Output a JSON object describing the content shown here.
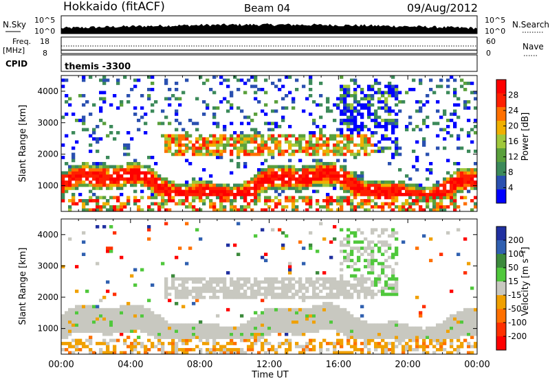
{
  "header": {
    "station": "Hokkaido (fitACF)",
    "beam": "Beam 04",
    "date": "09/Aug/2012"
  },
  "summary": {
    "nsky_label": "N.Sky",
    "nsky_ticks": [
      "10^5",
      "10^0"
    ],
    "nsearch_label": "N.Search",
    "nsearch_ticks": [
      "10^5",
      "10^0"
    ],
    "freq_label": "Freq.",
    "freq_unit": "[MHz]",
    "freq_ticks": [
      "18",
      "8"
    ],
    "nave_label": "Nave",
    "nave_ticks": [
      "60",
      "0"
    ],
    "cpid_label": "CPID",
    "cpid_value": "themis -3300"
  },
  "colors": {
    "power_scale": [
      "#0000ff",
      "#2a50b0",
      "#3c8a5a",
      "#5aa03c",
      "#a0c83c",
      "#f0b000",
      "#ff7000",
      "#ff2000",
      "#ff0000"
    ],
    "velocity_scale": [
      "#2030a0",
      "#3060b0",
      "#3c8a3c",
      "#50c83c",
      "#c8c8c0",
      "#f0a000",
      "#ff7000",
      "#ff3000",
      "#ff0000"
    ]
  },
  "chart_data": [
    {
      "type": "heatmap",
      "panel": "power",
      "ylabel": "Slant Range [km]",
      "y_ticks": [
        "1000",
        "2000",
        "3000",
        "4000"
      ],
      "ylim": [
        180,
        4500
      ],
      "colorbar_label": "Power [dB]",
      "colorbar_ticks": [
        "4",
        "8",
        "12",
        "16",
        "20",
        "24",
        "28"
      ],
      "x_ticks": [
        "00:00",
        "04:00",
        "08:00",
        "12:00",
        "16:00",
        "20:00",
        "00:00"
      ]
    },
    {
      "type": "heatmap",
      "panel": "velocity",
      "ylabel": "Slant Range [km]",
      "y_ticks": [
        "1000",
        "2000",
        "3000",
        "4000"
      ],
      "ylim": [
        180,
        4500
      ],
      "colorbar_label": "Velocity [m s⁻¹]",
      "colorbar_ticks": [
        "200",
        "100",
        "50",
        "15",
        "-15",
        "-50",
        "-100",
        "-200"
      ],
      "xlabel": "Time UT",
      "x_ticks": [
        "00:00",
        "04:00",
        "08:00",
        "12:00",
        "16:00",
        "20:00",
        "00:00"
      ]
    }
  ]
}
